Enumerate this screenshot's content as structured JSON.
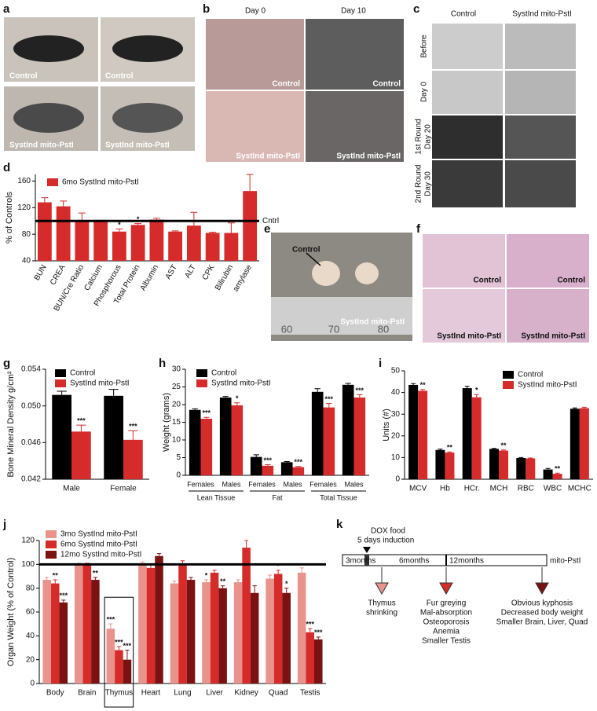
{
  "panel_labels": [
    "a",
    "b",
    "c",
    "d",
    "e",
    "f",
    "g",
    "h",
    "i",
    "j",
    "k"
  ],
  "photos": {
    "a": {
      "captions": [
        "Control",
        "Control",
        "SystInd mito-PstI",
        "SystInd mito-PstI"
      ]
    },
    "b": {
      "columns": [
        "Day 0",
        "Day 10"
      ],
      "captions": [
        "Control",
        "Control",
        "SystInd mito-PstI",
        "SystInd mito-PstI"
      ]
    },
    "c": {
      "columns": [
        "Control",
        "SystInd mito-PstI"
      ],
      "rows": [
        [
          "Before"
        ],
        [
          "Day 0"
        ],
        [
          "1st Round",
          "Day 20"
        ],
        [
          "2nd Round",
          "Day 30"
        ]
      ]
    },
    "e": {
      "captions": [
        "Control",
        "SystInd mito-PstI"
      ],
      "ruler": [
        "60",
        "70",
        "80"
      ]
    },
    "f": {
      "captions": [
        "Control",
        "Control",
        "SystInd mito-PstI",
        "SystInd mito-PstI"
      ]
    }
  },
  "chart_data": [
    {
      "type": "bar",
      "ylabel": "% of Controls",
      "categories": [
        "BUN",
        "CREA",
        "BUN/Cre Ratio",
        "Calcium",
        "Phosphorous",
        "Total Protein",
        "Albumin",
        "AST",
        "ALT",
        "CPK",
        "Bilirubin",
        "amylase"
      ],
      "series": [
        {
          "name": "6mo SystInd mito-PstI",
          "color": "#d52b2b",
          "values": [
            128,
            122,
            100,
            100,
            84,
            94,
            102,
            84,
            93,
            82,
            82,
            145
          ],
          "errors": [
            7,
            8,
            12,
            1,
            4,
            2,
            2,
            1,
            20,
            1,
            15,
            25
          ],
          "stars": [
            null,
            null,
            null,
            null,
            "*",
            "*",
            null,
            null,
            null,
            null,
            null,
            null
          ]
        }
      ],
      "ylim": [
        40,
        170
      ],
      "yticks": [
        40,
        80,
        120,
        160
      ],
      "refline": 100,
      "refline_label": "Cntrl"
    },
    {
      "type": "bar",
      "ylabel": "Bone Mineral Density g/cm²",
      "categories": [
        "Male",
        "Female"
      ],
      "series": [
        {
          "name": "Control",
          "color": "#000000",
          "values": [
            0.0512,
            0.0511
          ],
          "errors": [
            0.0004,
            0.0007
          ]
        },
        {
          "name": "SystInd mito-PstI",
          "color": "#d52b2b",
          "values": [
            0.0472,
            0.0463
          ],
          "errors": [
            0.0007,
            0.001
          ],
          "stars": [
            "***",
            "***"
          ]
        }
      ],
      "ylim": [
        0.042,
        0.054
      ],
      "yticks": [
        0.042,
        0.046,
        {
          "value": 0.05,
          "label": "0.050"
        },
        0.054
      ]
    },
    {
      "type": "bar",
      "ylabel": "Weight (grams)",
      "categories": [
        "Females",
        "Males",
        "Females",
        "Males",
        "Females",
        "Males"
      ],
      "groups": [
        "Lean Tissue",
        "Fat",
        "Total Tissue"
      ],
      "series": [
        {
          "name": "Control",
          "color": "#000000",
          "values": [
            18.5,
            22,
            5.2,
            3.7,
            23.6,
            25.6
          ],
          "errors": [
            0.3,
            0.3,
            0.6,
            0.2,
            0.9,
            0.4
          ]
        },
        {
          "name": "SystInd mito-PstI",
          "color": "#d52b2b",
          "values": [
            16,
            19.8,
            2.7,
            2.3,
            19.2,
            22
          ],
          "errors": [
            0.4,
            0.7,
            0.3,
            0.2,
            1.1,
            0.8
          ],
          "stars": [
            "***",
            "*",
            "***",
            "***",
            "***",
            "***"
          ]
        }
      ],
      "ylim": [
        0,
        30
      ],
      "yticks": [
        0,
        5,
        10,
        15,
        20,
        25,
        30
      ]
    },
    {
      "type": "bar",
      "ylabel": "Units (#)",
      "categories": [
        "MCV",
        "Hb",
        "HCr.",
        "MCH",
        "RBC",
        "WBC",
        "MCHC"
      ],
      "series": [
        {
          "name": "Control",
          "color": "#000000",
          "values": [
            43.5,
            13.5,
            42,
            14,
            9.8,
            4.5,
            32.5
          ],
          "errors": [
            0.6,
            0.4,
            0.9,
            0.2,
            0.2,
            0.5,
            0.4
          ]
        },
        {
          "name": "SystInd mito-PstI",
          "color": "#d52b2b",
          "values": [
            40.8,
            12.3,
            37.8,
            13.2,
            9.6,
            2.5,
            32.8
          ],
          "errors": [
            0.6,
            0.3,
            1.2,
            0.3,
            0.2,
            0.3,
            0.4
          ],
          "stars": [
            "**",
            "**",
            "*",
            "**",
            null,
            "**",
            null
          ]
        }
      ],
      "ylim": [
        0,
        50
      ],
      "yticks": [
        0,
        10,
        20,
        30,
        40,
        50
      ]
    },
    {
      "type": "bar",
      "ylabel": "Organ Weight (% of Control)",
      "categories": [
        "Body",
        "Brain",
        "Thymus",
        "Heart",
        "Lung",
        "Liver",
        "Kidney",
        "Quad",
        "Testis"
      ],
      "series": [
        {
          "name": "3mo SystInd mito-PstI",
          "color": "#e8938c",
          "values": [
            87,
            100,
            46,
            100,
            84,
            85,
            85,
            88,
            93
          ],
          "errors": [
            2,
            1,
            4,
            2,
            2,
            2,
            2,
            3,
            4
          ],
          "stars": [
            null,
            null,
            "***",
            null,
            null,
            "*",
            null,
            null,
            null
          ]
        },
        {
          "name": "6mo SystInd mito-PstI",
          "color": "#d52b2b",
          "values": [
            84,
            100,
            28,
            97,
            100,
            93,
            114,
            92,
            43
          ],
          "errors": [
            3,
            1,
            3,
            3,
            3,
            2,
            6,
            3,
            3
          ],
          "stars": [
            "**",
            null,
            "***",
            null,
            null,
            null,
            null,
            "*",
            "***"
          ]
        },
        {
          "name": "12mo SystInd mito-PstI",
          "color": "#7a1212",
          "values": [
            68,
            87,
            20,
            107,
            87,
            80,
            76,
            76,
            37
          ],
          "errors": [
            2,
            2,
            8,
            2,
            2,
            2,
            6,
            4,
            2
          ],
          "stars": [
            "***",
            "**",
            "***",
            null,
            null,
            "**",
            null,
            "*",
            "***"
          ]
        }
      ],
      "ylim": [
        0,
        120
      ],
      "yticks": [
        0,
        20,
        40,
        60,
        80,
        100,
        120
      ],
      "refline": 100
    }
  ],
  "timeline": {
    "induction": [
      "DOX food",
      "5 days induction"
    ],
    "periods": [
      "3months",
      "6months",
      "12months"
    ],
    "end_label": "mito-PstI",
    "events": [
      [
        "Thymus",
        "shrinking"
      ],
      [
        "Fur greying",
        "Mal-absorption",
        "Osteoporosis",
        "Anemia",
        "Smaller Testis"
      ],
      [
        "Obvious kyphosis",
        "Decreased body weight",
        "Smaller Brain, Liver, Quad"
      ]
    ]
  }
}
